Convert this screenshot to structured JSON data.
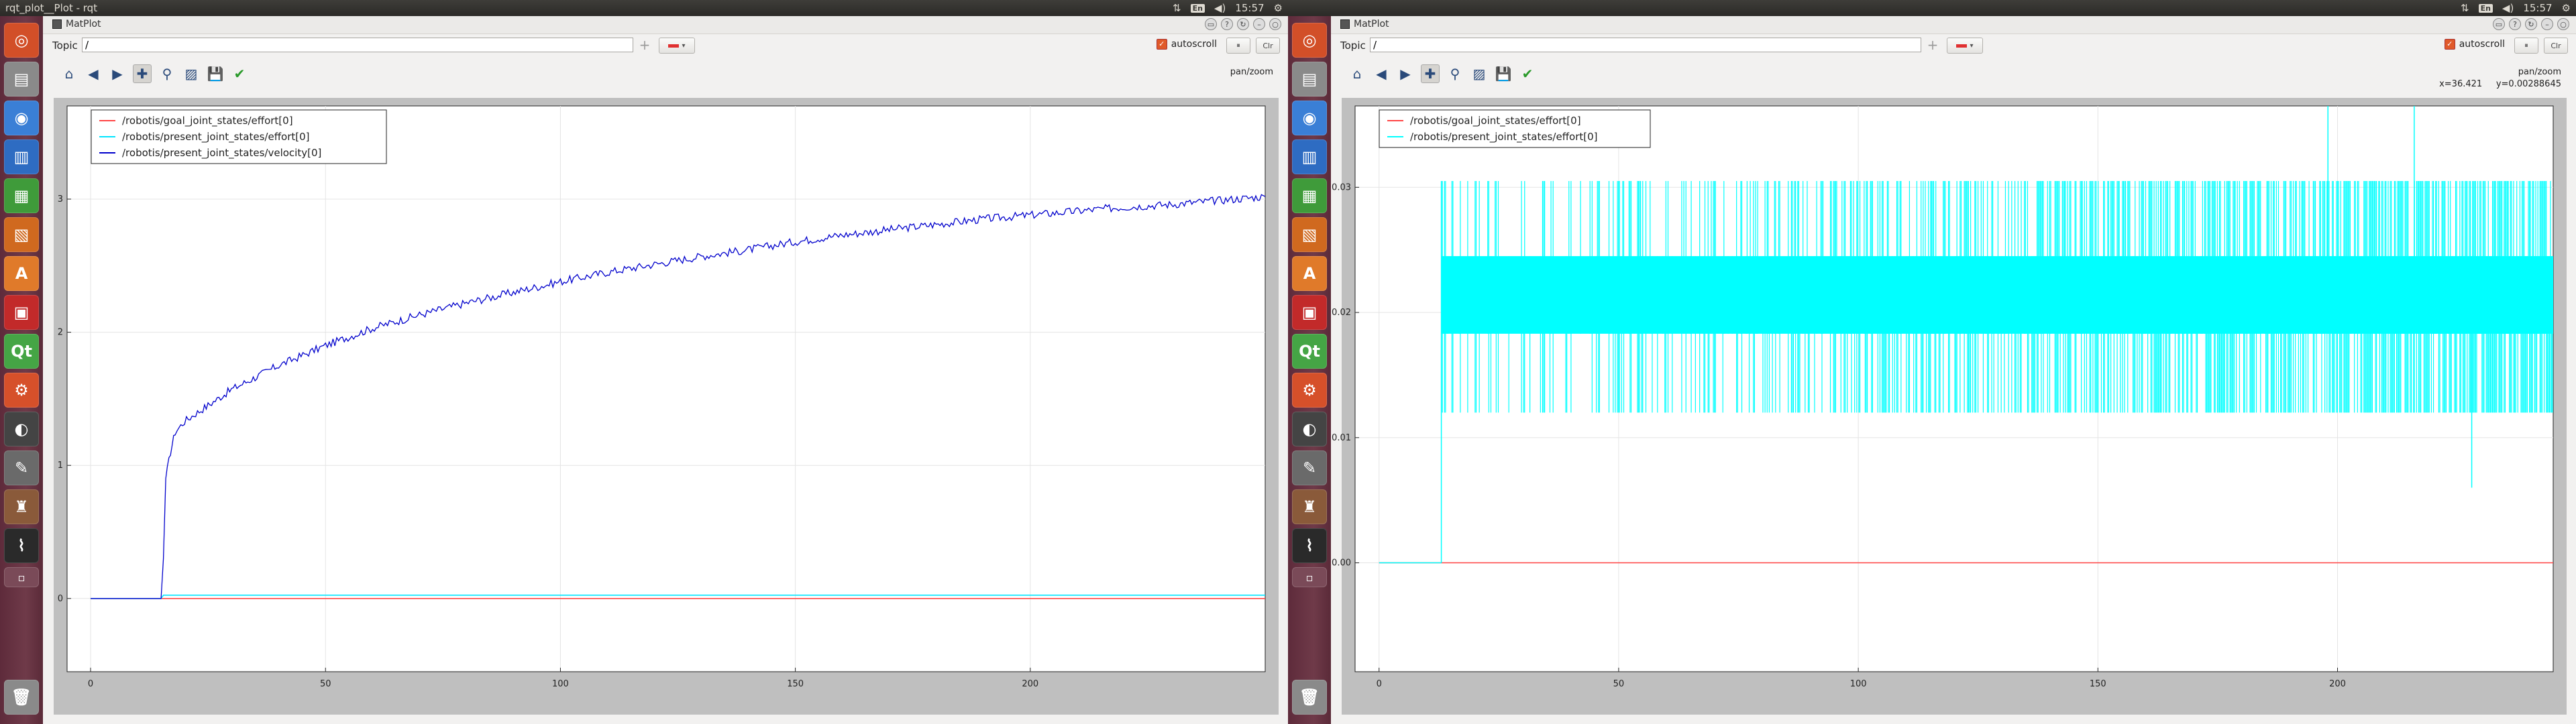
{
  "system": {
    "window_title": "rqt_plot__Plot - rqt",
    "keyboard": "En",
    "clock": "15:57"
  },
  "launcher": {
    "items": [
      {
        "name": "ubuntu-dash-icon",
        "glyph": "◎",
        "color": "#d24f28"
      },
      {
        "name": "file-manager-icon",
        "glyph": "▤",
        "color": "#8a8a8a"
      },
      {
        "name": "chrome-icon",
        "glyph": "◉",
        "color": "#3a7fd6"
      },
      {
        "name": "writer-icon",
        "glyph": "▥",
        "color": "#2e6cc2"
      },
      {
        "name": "calc-icon",
        "glyph": "▦",
        "color": "#3f9b3a"
      },
      {
        "name": "impress-icon",
        "glyph": "▧",
        "color": "#d0691f"
      },
      {
        "name": "software-center-icon",
        "glyph": "A",
        "color": "#e07a2a"
      },
      {
        "name": "system-monitor-icon",
        "glyph": "▣",
        "color": "#c22a2a"
      },
      {
        "name": "qt-creator-icon",
        "glyph": "Qt",
        "color": "#45a545"
      },
      {
        "name": "system-settings-icon",
        "glyph": "⚙",
        "color": "#d6502a"
      },
      {
        "name": "eye-icon",
        "glyph": "◐",
        "color": "#444444"
      },
      {
        "name": "text-editor-icon",
        "glyph": "✎",
        "color": "#6a6a6a"
      },
      {
        "name": "rviz-icon",
        "glyph": "♜",
        "color": "#8a5a3a"
      },
      {
        "name": "terminal-monitor-icon",
        "glyph": "⌇",
        "color": "#2a2a2a"
      },
      {
        "name": "workspace-switcher-icon",
        "glyph": "▫",
        "color": "#7a4a58"
      },
      {
        "name": "trash-icon",
        "glyph": "🗑",
        "color": "#8a8a8a"
      }
    ]
  },
  "rqt": {
    "plugin_title": "MatPlot",
    "topic_label": "Topic",
    "topic_value": "/",
    "add_symbol": "+",
    "autoscroll_label": "autoscroll",
    "autoscroll_checked": "✓",
    "pause_label": "⏸",
    "clear_label": "Clr",
    "pan_zoom_label": "pan/zoom",
    "accent_color": "#e05a2a"
  },
  "toolbar": [
    {
      "name": "home-icon",
      "glyph": "⌂"
    },
    {
      "name": "back-icon",
      "glyph": "◀"
    },
    {
      "name": "forward-icon",
      "glyph": "▶"
    },
    {
      "name": "pan-icon",
      "glyph": "✚"
    },
    {
      "name": "zoom-icon",
      "glyph": "⚲"
    },
    {
      "name": "configure-subplots-icon",
      "glyph": "▨"
    },
    {
      "name": "save-icon",
      "glyph": "💾"
    },
    {
      "name": "edit-axis-icon",
      "glyph": "✔"
    }
  ],
  "left": {
    "coordinates": ""
  },
  "right": {
    "coordinates": "x=36.421     y=0.00288645"
  },
  "chart_data": [
    {
      "type": "line",
      "title": "",
      "xlabel": "",
      "ylabel": "",
      "xlim": [
        -5,
        250
      ],
      "ylim": [
        -0.55,
        3.7
      ],
      "xticks": [
        0,
        50,
        100,
        150,
        200
      ],
      "yticks": [
        0,
        1,
        2,
        3
      ],
      "grid": true,
      "legend_position": "top-left",
      "series": [
        {
          "name": "/robotis/goal_joint_states/effort[0]",
          "color": "#ff4444",
          "x": [
            0,
            250
          ],
          "y": [
            0,
            0
          ]
        },
        {
          "name": "/robotis/present_joint_states/effort[0]",
          "color": "#00e5ff",
          "x": [
            0,
            15,
            15.5,
            250
          ],
          "y": [
            0,
            0,
            0.025,
            0.025
          ]
        },
        {
          "name": "/robotis/present_joint_states/velocity[0]",
          "color": "#0000cc",
          "x": [
            0,
            15,
            15.5,
            16,
            17,
            18,
            20,
            22,
            25,
            30,
            35,
            40,
            50,
            60,
            70,
            80,
            90,
            100,
            110,
            120,
            130,
            140,
            150,
            160,
            170,
            180,
            190,
            200,
            210,
            220,
            230,
            240,
            250
          ],
          "y": [
            0,
            0,
            0.3,
            0.9,
            1.1,
            1.25,
            1.33,
            1.38,
            1.45,
            1.57,
            1.66,
            1.75,
            1.9,
            2.03,
            2.13,
            2.22,
            2.3,
            2.38,
            2.45,
            2.51,
            2.57,
            2.62,
            2.68,
            2.73,
            2.77,
            2.81,
            2.85,
            2.88,
            2.91,
            2.94,
            2.96,
            2.99,
            3.02
          ]
        }
      ]
    },
    {
      "type": "line",
      "title": "",
      "xlabel": "",
      "ylabel": "",
      "xlim": [
        -5,
        245
      ],
      "ylim": [
        -0.0087,
        0.0365
      ],
      "xticks": [
        0,
        50,
        100,
        150,
        200
      ],
      "yticks": [
        0.0,
        0.01,
        0.02,
        0.03
      ],
      "ytick_labels": [
        "0.00",
        "0.01",
        "0.02",
        "0.03"
      ],
      "grid": true,
      "legend_position": "top-left",
      "series": [
        {
          "name": "/robotis/goal_joint_states/effort[0]",
          "color": "#ff4444",
          "x": [
            0,
            245
          ],
          "y": [
            0,
            0
          ]
        },
        {
          "name": "/robotis/present_joint_states/effort[0]",
          "color": "#00ffff",
          "x": [
            0,
            13,
            13.2,
            245
          ],
          "y": [
            0,
            0,
            0.024,
            0.024
          ],
          "band_min": 0.012,
          "band_max": 0.0305,
          "dense_band_low": 0.0183,
          "dense_band_high": 0.0245,
          "spikes": [
            {
              "x": 198,
              "y": 0.0365
            },
            {
              "x": 216,
              "y": 0.0365
            },
            {
              "x": 228,
              "y": 0.006
            }
          ]
        }
      ]
    }
  ]
}
